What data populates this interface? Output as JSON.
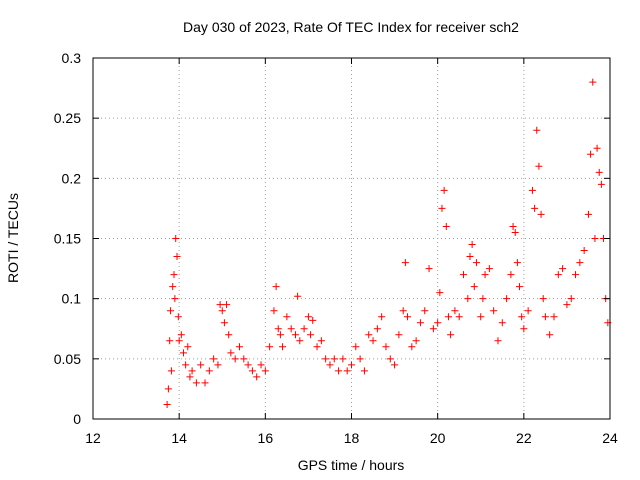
{
  "chart_data": {
    "type": "scatter",
    "title": "Day 030 of 2023, Rate Of TEC Index for receiver sch2",
    "xlabel": "GPS time / hours",
    "ylabel": "ROTI / TECUs",
    "xlim": [
      12,
      24
    ],
    "ylim": [
      0,
      0.3
    ],
    "xticks": [
      12,
      14,
      16,
      18,
      20,
      22,
      24
    ],
    "xtick_labels": [
      "12",
      "14",
      "16",
      "18",
      "20",
      "22",
      "24"
    ],
    "yticks": [
      0,
      0.05,
      0.1,
      0.15,
      0.2,
      0.25,
      0.3
    ],
    "ytick_labels": [
      "0",
      "0.05",
      "0.1",
      "0.15",
      "0.2",
      "0.25",
      "0.3"
    ],
    "grid": true,
    "marker": "+",
    "marker_color": "#ff0000",
    "series": [
      {
        "name": "ROTI",
        "points": [
          [
            13.72,
            0.012
          ],
          [
            13.75,
            0.025
          ],
          [
            13.78,
            0.065
          ],
          [
            13.8,
            0.09
          ],
          [
            13.82,
            0.04
          ],
          [
            13.85,
            0.11
          ],
          [
            13.88,
            0.12
          ],
          [
            13.9,
            0.1
          ],
          [
            13.92,
            0.15
          ],
          [
            13.95,
            0.135
          ],
          [
            13.98,
            0.085
          ],
          [
            14.0,
            0.065
          ],
          [
            14.05,
            0.07
          ],
          [
            14.1,
            0.055
          ],
          [
            14.15,
            0.045
          ],
          [
            14.2,
            0.06
          ],
          [
            14.25,
            0.035
          ],
          [
            14.3,
            0.04
          ],
          [
            14.4,
            0.03
          ],
          [
            14.5,
            0.045
          ],
          [
            14.6,
            0.03
          ],
          [
            14.7,
            0.04
          ],
          [
            14.8,
            0.05
          ],
          [
            14.9,
            0.045
          ],
          [
            14.95,
            0.095
          ],
          [
            15.0,
            0.09
          ],
          [
            15.05,
            0.08
          ],
          [
            15.1,
            0.095
          ],
          [
            15.15,
            0.07
          ],
          [
            15.2,
            0.055
          ],
          [
            15.3,
            0.05
          ],
          [
            15.4,
            0.06
          ],
          [
            15.5,
            0.05
          ],
          [
            15.6,
            0.045
          ],
          [
            15.7,
            0.04
          ],
          [
            15.8,
            0.035
          ],
          [
            15.9,
            0.045
          ],
          [
            16.0,
            0.04
          ],
          [
            16.1,
            0.06
          ],
          [
            16.2,
            0.09
          ],
          [
            16.25,
            0.11
          ],
          [
            16.3,
            0.075
          ],
          [
            16.35,
            0.07
          ],
          [
            16.4,
            0.06
          ],
          [
            16.5,
            0.085
          ],
          [
            16.6,
            0.075
          ],
          [
            16.7,
            0.07
          ],
          [
            16.75,
            0.102
          ],
          [
            16.8,
            0.065
          ],
          [
            16.9,
            0.075
          ],
          [
            17.0,
            0.085
          ],
          [
            17.05,
            0.07
          ],
          [
            17.1,
            0.082
          ],
          [
            17.2,
            0.06
          ],
          [
            17.3,
            0.065
          ],
          [
            17.4,
            0.05
          ],
          [
            17.5,
            0.045
          ],
          [
            17.6,
            0.05
          ],
          [
            17.7,
            0.04
          ],
          [
            17.8,
            0.05
          ],
          [
            17.9,
            0.04
          ],
          [
            18.0,
            0.045
          ],
          [
            18.1,
            0.06
          ],
          [
            18.2,
            0.05
          ],
          [
            18.3,
            0.04
          ],
          [
            18.4,
            0.07
          ],
          [
            18.5,
            0.065
          ],
          [
            18.6,
            0.075
          ],
          [
            18.7,
            0.085
          ],
          [
            18.8,
            0.06
          ],
          [
            18.9,
            0.05
          ],
          [
            19.0,
            0.045
          ],
          [
            19.1,
            0.07
          ],
          [
            19.2,
            0.09
          ],
          [
            19.25,
            0.13
          ],
          [
            19.3,
            0.085
          ],
          [
            19.4,
            0.06
          ],
          [
            19.5,
            0.065
          ],
          [
            19.6,
            0.08
          ],
          [
            19.7,
            0.09
          ],
          [
            19.8,
            0.125
          ],
          [
            19.9,
            0.075
          ],
          [
            20.0,
            0.08
          ],
          [
            20.05,
            0.105
          ],
          [
            20.1,
            0.175
          ],
          [
            20.15,
            0.19
          ],
          [
            20.2,
            0.16
          ],
          [
            20.25,
            0.085
          ],
          [
            20.3,
            0.07
          ],
          [
            20.4,
            0.09
          ],
          [
            20.5,
            0.085
          ],
          [
            20.6,
            0.12
          ],
          [
            20.7,
            0.1
          ],
          [
            20.75,
            0.135
          ],
          [
            20.8,
            0.145
          ],
          [
            20.85,
            0.11
          ],
          [
            20.9,
            0.13
          ],
          [
            21.0,
            0.085
          ],
          [
            21.05,
            0.1
          ],
          [
            21.1,
            0.12
          ],
          [
            21.2,
            0.125
          ],
          [
            21.3,
            0.09
          ],
          [
            21.4,
            0.065
          ],
          [
            21.5,
            0.08
          ],
          [
            21.6,
            0.1
          ],
          [
            21.7,
            0.12
          ],
          [
            21.75,
            0.16
          ],
          [
            21.8,
            0.155
          ],
          [
            21.85,
            0.13
          ],
          [
            21.9,
            0.11
          ],
          [
            21.95,
            0.085
          ],
          [
            22.0,
            0.075
          ],
          [
            22.1,
            0.09
          ],
          [
            22.2,
            0.19
          ],
          [
            22.25,
            0.175
          ],
          [
            22.3,
            0.24
          ],
          [
            22.35,
            0.21
          ],
          [
            22.4,
            0.17
          ],
          [
            22.45,
            0.1
          ],
          [
            22.5,
            0.085
          ],
          [
            22.6,
            0.07
          ],
          [
            22.7,
            0.085
          ],
          [
            22.8,
            0.12
          ],
          [
            22.9,
            0.125
          ],
          [
            23.0,
            0.095
          ],
          [
            23.1,
            0.1
          ],
          [
            23.2,
            0.12
          ],
          [
            23.3,
            0.13
          ],
          [
            23.4,
            0.14
          ],
          [
            23.5,
            0.17
          ],
          [
            23.55,
            0.22
          ],
          [
            23.6,
            0.28
          ],
          [
            23.65,
            0.15
          ],
          [
            23.7,
            0.225
          ],
          [
            23.75,
            0.205
          ],
          [
            23.8,
            0.195
          ],
          [
            23.85,
            0.15
          ],
          [
            23.9,
            0.1
          ],
          [
            23.95,
            0.08
          ]
        ]
      }
    ]
  }
}
